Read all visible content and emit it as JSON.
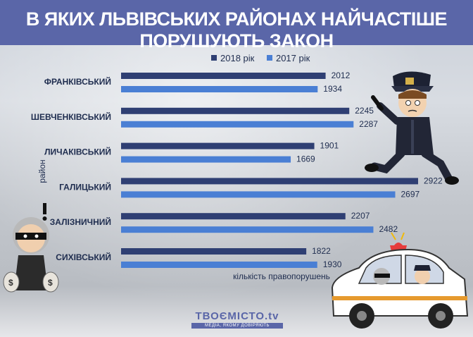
{
  "header": {
    "title": "В ЯКИХ ЛЬВІВСЬКИХ РАЙОНАХ НАЙЧАСТІШЕ ПОРУШУЮТЬ ЗАКОН"
  },
  "colors": {
    "series_2018": "#2f3f73",
    "series_2017": "#4a7fd4",
    "title_bg": "#5a66a8"
  },
  "chart_data": {
    "type": "bar",
    "orientation": "horizontal",
    "title": "В ЯКИХ ЛЬВІВСЬКИХ РАЙОНАХ НАЙЧАСТІШЕ ПОРУШУЮТЬ ЗАКОН",
    "xlabel": "кількість правопорушень",
    "ylabel": "район",
    "categories": [
      "ФРАНКІВСЬКИЙ",
      "ШЕВЧЕНКІВСЬКИЙ",
      "ЛИЧАКІВСЬКИЙ",
      "ГАЛИЦЬКИЙ",
      "ЗАЛІЗНИЧНИЙ",
      "СИХІВСЬКИЙ"
    ],
    "series": [
      {
        "name": "2018 рік",
        "values": [
          2012,
          2245,
          1901,
          2922,
          2207,
          1822
        ]
      },
      {
        "name": "2017 рік",
        "values": [
          1934,
          2287,
          1669,
          2697,
          2482,
          1930
        ]
      }
    ],
    "xlim": [
      0,
      3050
    ],
    "legend_position": "top",
    "grid": false
  },
  "logo": {
    "name": "ТВОЄМІСТО.tv",
    "tagline": "МЕДІА, ЯКОМУ ДОВІРЯЮТЬ"
  },
  "icons": [
    "police-officer-illustration",
    "thief-illustration",
    "police-car-illustration",
    "exclamation-icon"
  ]
}
